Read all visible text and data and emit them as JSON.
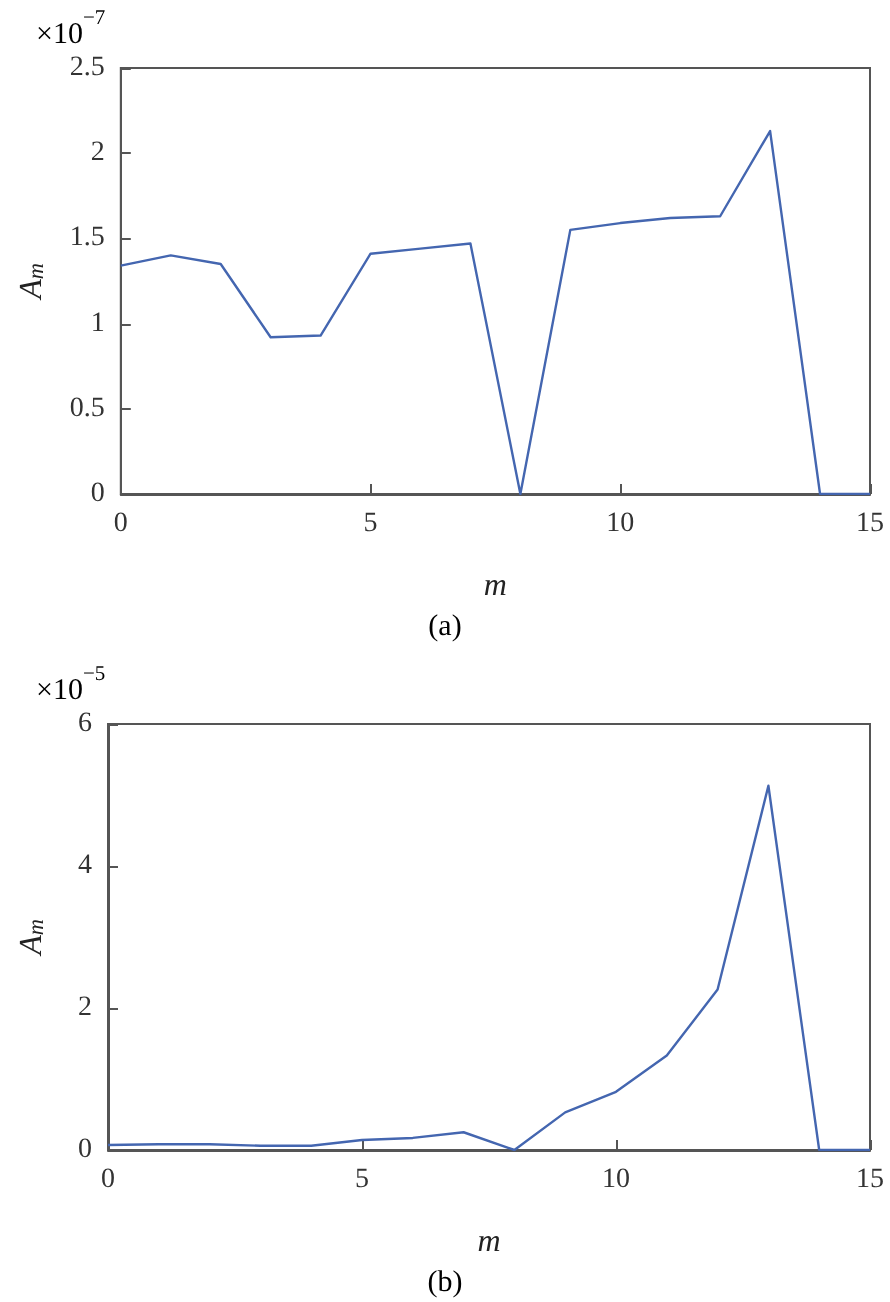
{
  "chart_data": [
    {
      "type": "line",
      "xlabel": "m",
      "ylabel": "A$_{m}$",
      "annotations": [
        "×10$^{−7}$",
        "(a)"
      ],
      "x": [
        0,
        1,
        2,
        3,
        4,
        5,
        6,
        7,
        8,
        9,
        10,
        11,
        12,
        13,
        14,
        15
      ],
      "series": [
        {
          "color": "#4466b0",
          "values": [
            1.34,
            1.4,
            1.35,
            0.92,
            0.93,
            1.41,
            1.44,
            1.47,
            0,
            1.55,
            1.59,
            1.62,
            1.63,
            2.13,
            0,
            0
          ]
        }
      ],
      "xlim": [
        0,
        15
      ],
      "xticks": [
        0,
        5,
        10,
        15
      ],
      "ylim": [
        0,
        2.5
      ],
      "yticks": [
        0,
        0.5,
        1,
        1.5,
        2,
        2.5
      ],
      "grid": false,
      "marker": "none",
      "line_style": "solid"
    },
    {
      "type": "line",
      "xlabel": "m",
      "ylabel": "A$_{m}$",
      "annotations": [
        "×10$^{−5}$",
        "(b)"
      ],
      "x": [
        0,
        1,
        2,
        3,
        4,
        5,
        6,
        7,
        8,
        9,
        10,
        11,
        12,
        13,
        14,
        15
      ],
      "series": [
        {
          "color": "#4466b0",
          "values": [
            0.07,
            0.08,
            0.08,
            0.06,
            0.06,
            0.14,
            0.17,
            0.25,
            0,
            0.53,
            0.82,
            1.33,
            2.26,
            5.13,
            0,
            0
          ]
        }
      ],
      "xlim": [
        0,
        15
      ],
      "xticks": [
        0,
        5,
        10,
        15
      ],
      "ylim": [
        0,
        6
      ],
      "yticks": [
        0,
        2,
        4,
        6
      ],
      "grid": false,
      "marker": "none",
      "line_style": "solid"
    }
  ]
}
